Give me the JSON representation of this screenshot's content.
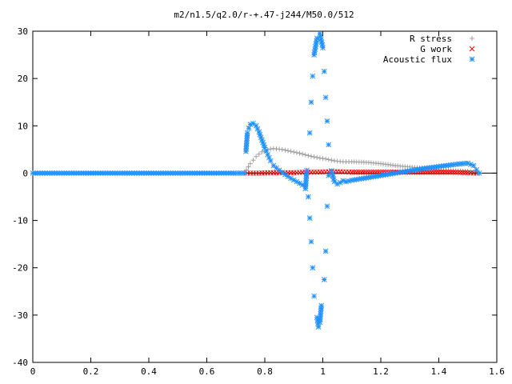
{
  "chart_data": {
    "type": "scatter",
    "title": "m2/n1.5/q2.0/r-+.47-j244/M50.0/512",
    "xlabel": "",
    "ylabel": "",
    "xlim": [
      0,
      1.6
    ],
    "ylim": [
      -40,
      30
    ],
    "x_ticks": [
      "0",
      "0.2",
      "0.4",
      "0.6",
      "0.8",
      "1",
      "1.2",
      "1.4",
      "1.6"
    ],
    "y_ticks": [
      "30",
      "20",
      "10",
      "0",
      "-10",
      "-20",
      "-30",
      "-40"
    ],
    "legend_position": "top-right",
    "grid": false,
    "series": [
      {
        "name": "R stress",
        "marker": "plus",
        "color": "#a0a0a0",
        "points": [
          [
            0.73,
            0.0
          ],
          [
            0.75,
            2.0
          ],
          [
            0.77,
            3.5
          ],
          [
            0.79,
            4.5
          ],
          [
            0.81,
            5.0
          ],
          [
            0.83,
            5.2
          ],
          [
            0.86,
            5.0
          ],
          [
            0.89,
            4.6
          ],
          [
            0.92,
            4.2
          ],
          [
            0.95,
            3.7
          ],
          [
            0.98,
            3.3
          ],
          [
            1.01,
            3.0
          ],
          [
            1.04,
            2.6
          ],
          [
            1.07,
            2.4
          ],
          [
            1.1,
            2.4
          ],
          [
            1.15,
            2.3
          ],
          [
            1.2,
            2.0
          ],
          [
            1.25,
            1.6
          ],
          [
            1.3,
            1.3
          ],
          [
            1.35,
            1.0
          ],
          [
            1.4,
            0.7
          ],
          [
            1.45,
            0.5
          ],
          [
            1.5,
            0.4
          ],
          [
            1.53,
            0.2
          ]
        ]
      },
      {
        "name": "G work",
        "marker": "cross",
        "color": "#ff0000",
        "points": [
          [
            0.74,
            0.0
          ],
          [
            0.78,
            0.0
          ],
          [
            0.82,
            0.1
          ],
          [
            0.86,
            0.1
          ],
          [
            0.9,
            0.1
          ],
          [
            0.94,
            0.2
          ],
          [
            0.98,
            0.2
          ],
          [
            1.02,
            0.3
          ],
          [
            1.06,
            0.3
          ],
          [
            1.1,
            0.2
          ],
          [
            1.15,
            0.2
          ],
          [
            1.2,
            0.2
          ],
          [
            1.25,
            0.2
          ],
          [
            1.3,
            0.2
          ],
          [
            1.35,
            0.2
          ],
          [
            1.4,
            0.2
          ],
          [
            1.45,
            0.2
          ],
          [
            1.5,
            0.1
          ],
          [
            1.53,
            0.0
          ]
        ]
      },
      {
        "name": "Acoustic flux",
        "marker": "star",
        "color": "#1e90ff",
        "points": [
          [
            0.0,
            0.0
          ],
          [
            0.05,
            0.0
          ],
          [
            0.1,
            0.0
          ],
          [
            0.15,
            0.0
          ],
          [
            0.2,
            0.0
          ],
          [
            0.25,
            0.0
          ],
          [
            0.3,
            0.0
          ],
          [
            0.35,
            0.0
          ],
          [
            0.4,
            0.0
          ],
          [
            0.45,
            0.0
          ],
          [
            0.5,
            0.0
          ],
          [
            0.55,
            0.0
          ],
          [
            0.6,
            0.0
          ],
          [
            0.65,
            0.0
          ],
          [
            0.7,
            0.0
          ],
          [
            0.73,
            0.0
          ],
          [
            0.735,
            4.6
          ],
          [
            0.74,
            8.5
          ],
          [
            0.745,
            9.5
          ],
          [
            0.75,
            10.3
          ],
          [
            0.76,
            10.5
          ],
          [
            0.77,
            10.0
          ],
          [
            0.78,
            8.7
          ],
          [
            0.79,
            7.0
          ],
          [
            0.8,
            5.4
          ],
          [
            0.81,
            3.9
          ],
          [
            0.82,
            2.6
          ],
          [
            0.83,
            1.6
          ],
          [
            0.85,
            0.6
          ],
          [
            0.87,
            -0.3
          ],
          [
            0.89,
            -1.1
          ],
          [
            0.91,
            -1.8
          ],
          [
            0.93,
            -2.5
          ],
          [
            0.94,
            -3.3
          ],
          [
            0.945,
            0.6
          ],
          [
            0.95,
            -5.0
          ],
          [
            0.955,
            -9.5
          ],
          [
            0.96,
            -14.5
          ],
          [
            0.965,
            -20.0
          ],
          [
            0.97,
            -26.0
          ],
          [
            0.98,
            -30.5
          ],
          [
            0.985,
            -32.5
          ],
          [
            0.99,
            -31.5
          ],
          [
            0.995,
            -28.0
          ],
          [
            1.005,
            -22.5
          ],
          [
            1.01,
            -16.5
          ],
          [
            1.015,
            -7.0
          ],
          [
            1.02,
            -0.5
          ],
          [
            1.03,
            0.5
          ],
          [
            1.04,
            -1.8
          ],
          [
            0.955,
            8.5
          ],
          [
            0.96,
            15.0
          ],
          [
            0.965,
            20.5
          ],
          [
            0.97,
            25.0
          ],
          [
            0.98,
            28.5
          ],
          [
            0.99,
            29.5
          ],
          [
            1.0,
            26.5
          ],
          [
            1.005,
            21.5
          ],
          [
            1.01,
            16.0
          ],
          [
            1.015,
            11.0
          ],
          [
            1.02,
            6.0
          ],
          [
            1.05,
            -2.3
          ],
          [
            1.06,
            -2.0
          ],
          [
            1.07,
            -1.6
          ],
          [
            1.08,
            -1.8
          ],
          [
            1.1,
            -1.5
          ],
          [
            1.15,
            -1.0
          ],
          [
            1.2,
            -0.5
          ],
          [
            1.25,
            0.0
          ],
          [
            1.3,
            0.5
          ],
          [
            1.35,
            1.0
          ],
          [
            1.4,
            1.4
          ],
          [
            1.45,
            1.8
          ],
          [
            1.48,
            2.0
          ],
          [
            1.5,
            2.1
          ],
          [
            1.52,
            1.6
          ],
          [
            1.53,
            0.7
          ],
          [
            1.54,
            0.0
          ]
        ]
      }
    ]
  }
}
